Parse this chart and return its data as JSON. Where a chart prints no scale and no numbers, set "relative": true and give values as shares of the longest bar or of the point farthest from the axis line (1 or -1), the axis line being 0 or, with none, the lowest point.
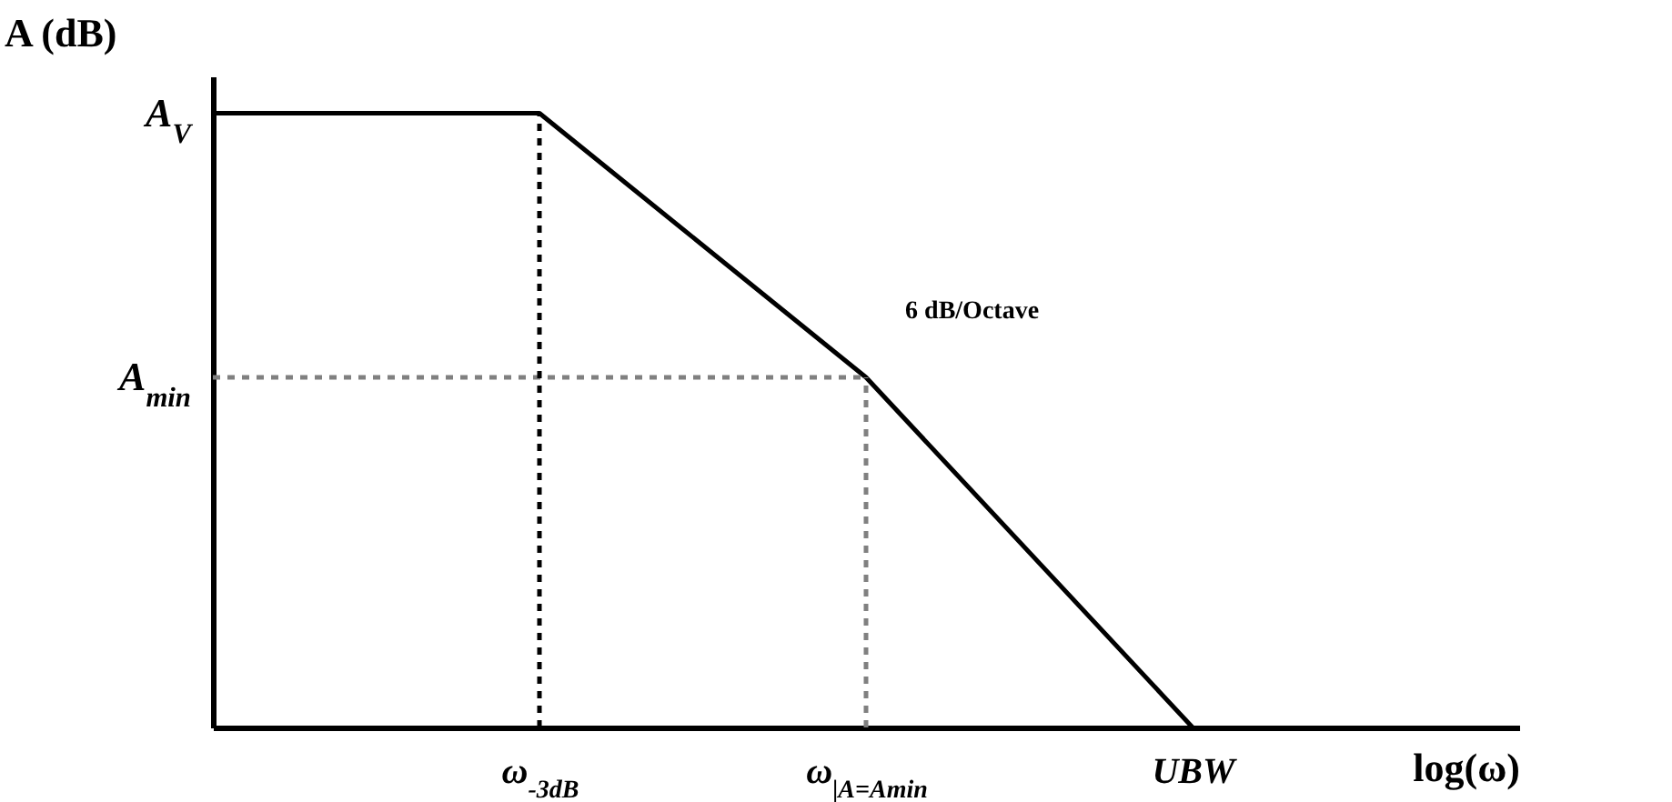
{
  "chart_data": {
    "type": "line",
    "relative": true,
    "xlabel": "log(ω)",
    "ylabel": "A (dB)",
    "categories": [
      null,
      "ω$_{-3dB}$",
      "ω$_{|A=Amin}$",
      "UBW",
      null
    ],
    "grid": false,
    "series": [
      {
        "color": "#000000",
        "values": [
          1,
          1,
          0.57,
          0,
          null
        ],
        "line_style": "solid"
      }
    ],
    "ref_lines": [
      {
        "axis": "y",
        "value": 0.57,
        "label": "A$_{min}$",
        "color": "#808080",
        "line_style": "dashed"
      },
      {
        "axis": "x",
        "value": "ω$_{-3dB}$",
        "color": "#000000",
        "line_style": "dashed"
      },
      {
        "axis": "x",
        "value": "ω$_{|A=Amin}$",
        "color": "#808080",
        "line_style": "dashed"
      }
    ],
    "annotations": [
      "A$_{V}$",
      "6 dB/Octave"
    ]
  }
}
